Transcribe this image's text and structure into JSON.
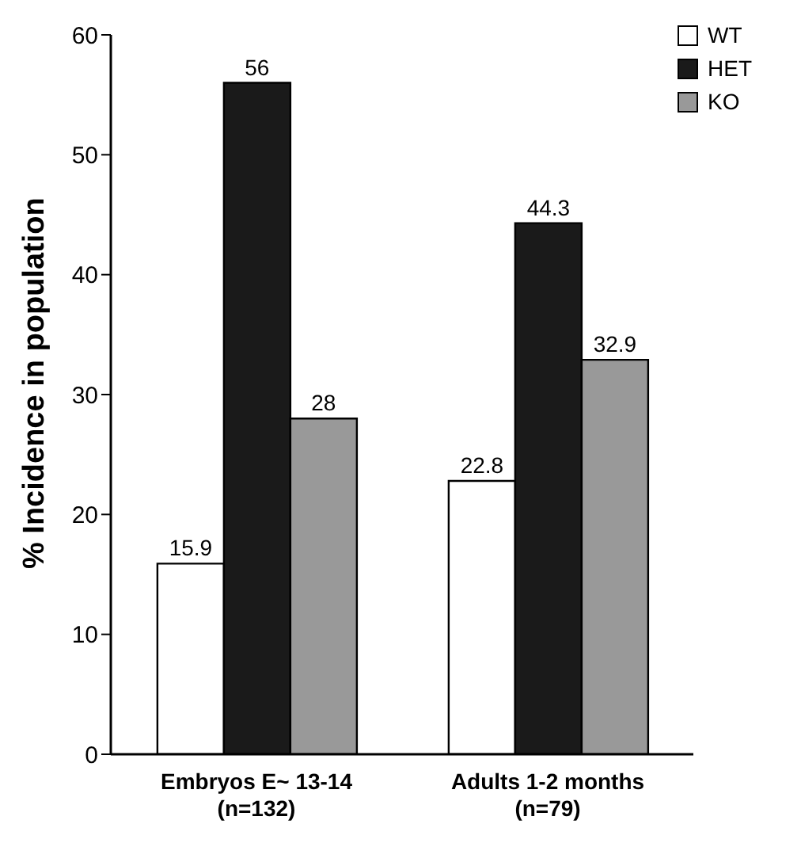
{
  "chart_data": {
    "type": "bar",
    "ylabel": "% Incidence in population",
    "categories": [
      "Embryos E~ 13-14\n(n=132)",
      "Adults 1-2 months\n(n=79)"
    ],
    "series": [
      {
        "name": "WT",
        "color": "#ffffff",
        "values": [
          15.9,
          22.8
        ]
      },
      {
        "name": "HET",
        "color": "#1a1a1a",
        "values": [
          56,
          44.3
        ]
      },
      {
        "name": "KO",
        "color": "#999999",
        "values": [
          28,
          32.9
        ]
      }
    ],
    "ylim": [
      0,
      60
    ],
    "yticks": [
      0,
      10,
      20,
      30,
      40,
      50,
      60
    ],
    "grid": false,
    "legend": "top right",
    "data_labels": true
  }
}
